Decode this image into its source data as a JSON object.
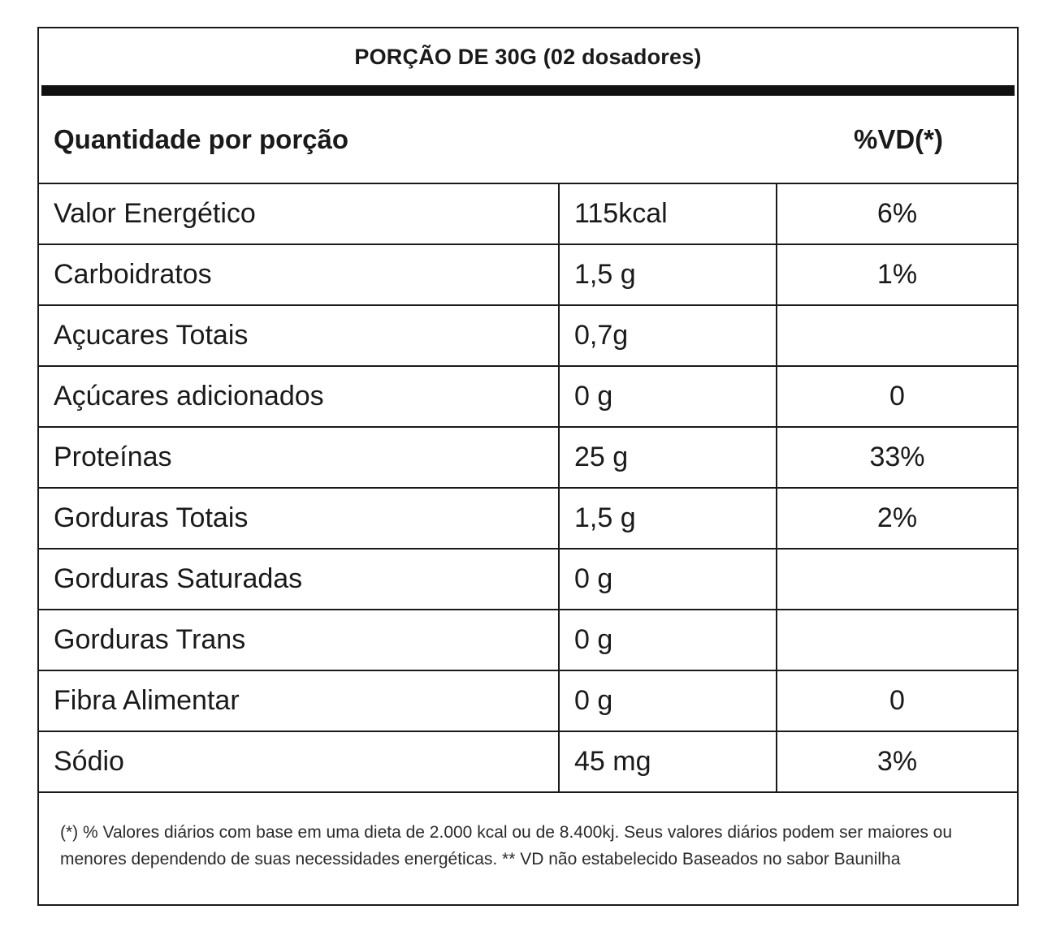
{
  "serving": "PORÇÃO DE 30G (02 dosadores)",
  "header": {
    "left": "Quantidade por porção",
    "right": "%VD(*)"
  },
  "rows": [
    {
      "name": "Valor Energético",
      "amount": "115kcal",
      "dv": "6%"
    },
    {
      "name": "Carboidratos",
      "amount": "1,5 g",
      "dv": "1%"
    },
    {
      "name": "Açucares Totais",
      "amount": "0,7g",
      "dv": ""
    },
    {
      "name": "Açúcares adicionados",
      "amount": "0 g",
      "dv": "0"
    },
    {
      "name": "Proteínas",
      "amount": "25 g",
      "dv": "33%"
    },
    {
      "name": "Gorduras Totais",
      "amount": "1,5 g",
      "dv": "2%"
    },
    {
      "name": "Gorduras Saturadas",
      "amount": "0 g",
      "dv": ""
    },
    {
      "name": "Gorduras Trans",
      "amount": "0 g",
      "dv": ""
    },
    {
      "name": "Fibra Alimentar",
      "amount": "0 g",
      "dv": "0"
    },
    {
      "name": "Sódio",
      "amount": "45 mg",
      "dv": "3%"
    }
  ],
  "footnote": "(*) % Valores diários com base em uma dieta de 2.000 kcal ou de 8.400kj. Seus valores diários podem ser maiores ou menores dependendo de suas necessidades energéticas. ** VD não estabelecido Baseados no sabor Baunilha"
}
